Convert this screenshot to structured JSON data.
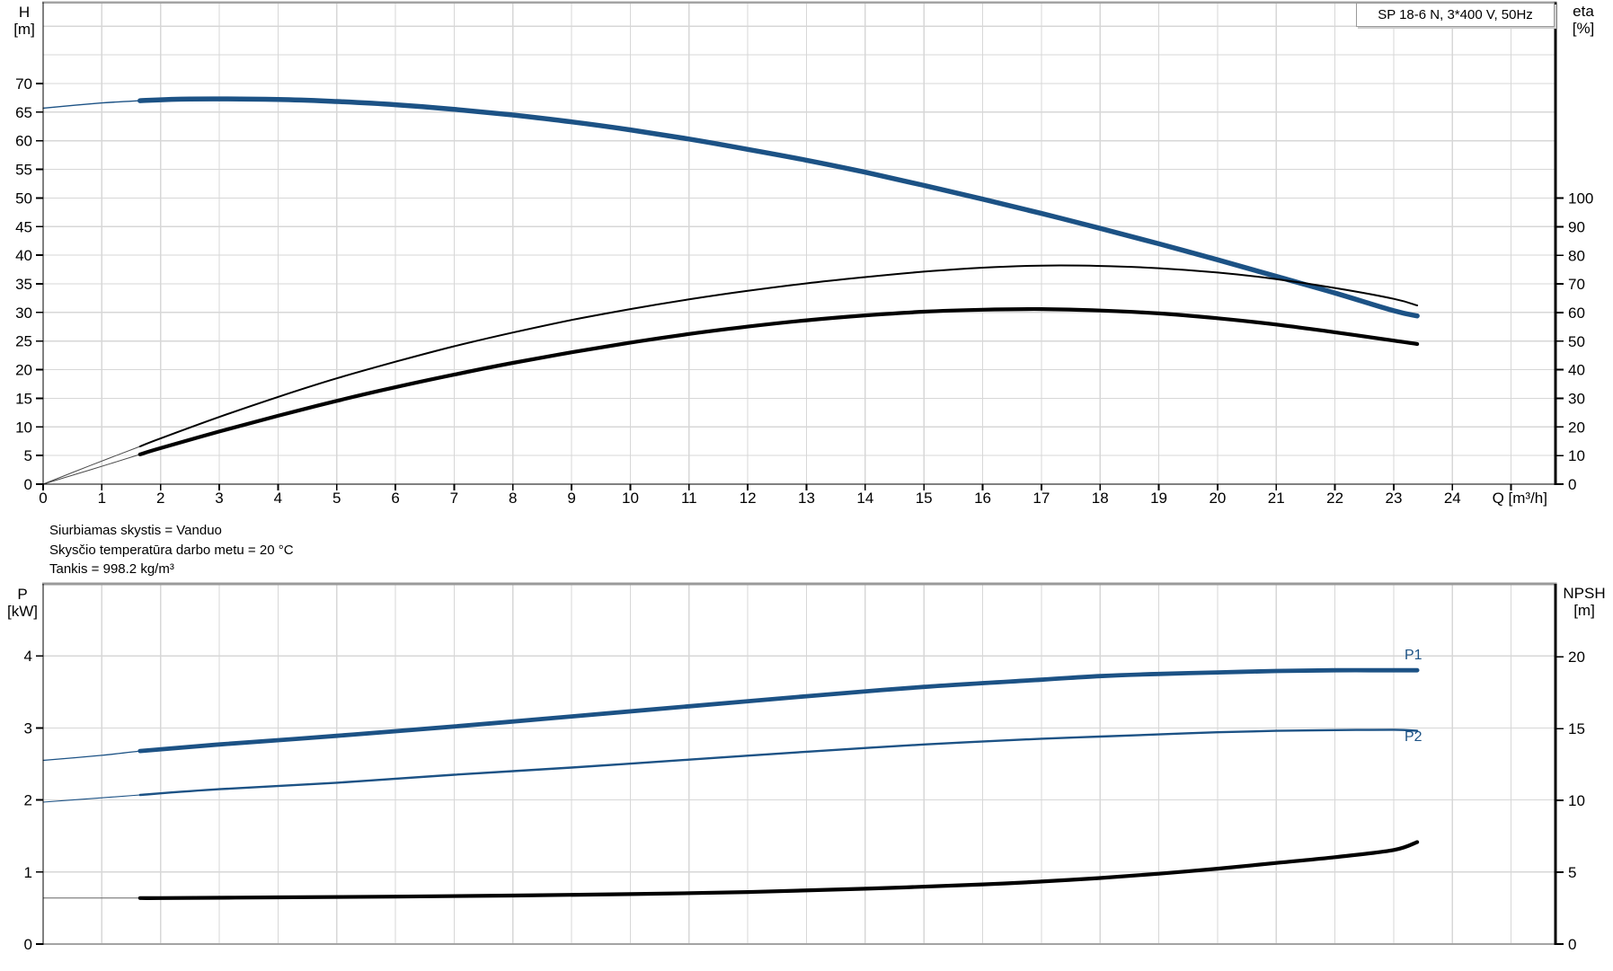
{
  "title_box": {
    "text": "SP 18-6 N, 3*400 V, 50Hz"
  },
  "notes": [
    "Siurbiamas skystis = Vanduo",
    "Skysčio temperatūra darbo metu = 20 °C",
    "Tankis = 998.2 kg/m³"
  ],
  "colors": {
    "curve_blue": "#1c5285",
    "curve_black": "#000000",
    "thin_lead": "#4a4a4a",
    "grid": "#d7d7d7",
    "border_gray": "#a3a3a3",
    "axis_black": "#000000",
    "label_blue": "#1c5285"
  },
  "chart_data": [
    {
      "id": "hq-eta",
      "type": "line",
      "title": "SP 18-6 N, 3*400 V, 50Hz",
      "x_axis": {
        "label": "Q [m³/h]",
        "ticks": [
          0,
          1,
          2,
          3,
          4,
          5,
          6,
          7,
          8,
          9,
          10,
          11,
          12,
          13,
          14,
          15,
          16,
          17,
          18,
          19,
          20,
          21,
          22,
          23,
          24
        ],
        "extra_tick_marks": [
          25
        ],
        "range": [
          0,
          25.74
        ],
        "grid_step": 1
      },
      "y_left": {
        "label": [
          "H",
          "[m]"
        ],
        "ticks": [
          0,
          5,
          10,
          15,
          20,
          25,
          30,
          35,
          40,
          45,
          50,
          55,
          60,
          65,
          70
        ],
        "range": [
          0,
          84.2
        ],
        "grid_step": 5
      },
      "y_right": {
        "label": [
          "eta",
          "[%]"
        ],
        "ticks": [
          0,
          10,
          20,
          30,
          40,
          50,
          60,
          70,
          80,
          90,
          100
        ],
        "range": [
          0,
          168.5
        ]
      },
      "series": [
        {
          "name": "head-curve",
          "label": "",
          "axis": "left",
          "color": "#1c5285",
          "width": 5.5,
          "thin_width": 1.4,
          "thin_color": "#1c5285",
          "thin_until": 1.65,
          "points": [
            [
              0,
              65.7
            ],
            [
              1,
              66.6
            ],
            [
              1.65,
              67.0
            ],
            [
              2.5,
              67.3
            ],
            [
              4,
              67.2
            ],
            [
              5,
              66.85
            ],
            [
              6,
              66.3
            ],
            [
              7,
              65.5
            ],
            [
              8,
              64.5
            ],
            [
              9,
              63.3
            ],
            [
              10,
              61.9
            ],
            [
              11,
              60.3
            ],
            [
              12,
              58.5
            ],
            [
              13,
              56.6
            ],
            [
              14,
              54.5
            ],
            [
              15,
              52.2
            ],
            [
              16,
              49.8
            ],
            [
              17,
              47.3
            ],
            [
              18,
              44.7
            ],
            [
              19,
              42.0
            ],
            [
              20,
              39.2
            ],
            [
              21,
              36.3
            ],
            [
              22,
              33.4
            ],
            [
              23,
              30.3
            ],
            [
              23.4,
              29.4
            ]
          ]
        },
        {
          "name": "eta-pump-curve",
          "label": "",
          "axis": "right",
          "color": "#000000",
          "width": 2,
          "thin_width": 1,
          "thin_color": "#4a4a4a",
          "thin_until": 1.65,
          "points": [
            [
              0,
              0
            ],
            [
              0.8,
              6.5
            ],
            [
              1.65,
              13.2
            ],
            [
              2,
              16
            ],
            [
              3,
              23.5
            ],
            [
              4,
              30.5
            ],
            [
              5,
              37
            ],
            [
              6,
              42.8
            ],
            [
              7,
              48.2
            ],
            [
              8,
              53
            ],
            [
              9,
              57.4
            ],
            [
              10,
              61.2
            ],
            [
              11,
              64.6
            ],
            [
              12,
              67.6
            ],
            [
              13,
              70.2
            ],
            [
              14,
              72.4
            ],
            [
              15,
              74.3
            ],
            [
              16,
              75.7
            ],
            [
              17,
              76.4
            ],
            [
              18,
              76.3
            ],
            [
              19,
              75.5
            ],
            [
              20,
              74.0
            ],
            [
              21,
              71.7
            ],
            [
              22,
              68.6
            ],
            [
              23,
              64.8
            ],
            [
              23.4,
              62.5
            ]
          ]
        },
        {
          "name": "eta-unit-curve",
          "label": "",
          "axis": "right",
          "color": "#000000",
          "width": 4.2,
          "thin_width": 1,
          "thin_color": "#4a4a4a",
          "thin_until": 1.65,
          "points": [
            [
              0,
              0
            ],
            [
              0.8,
              5.0
            ],
            [
              1.65,
              10.4
            ],
            [
              2,
              12.6
            ],
            [
              3,
              18.4
            ],
            [
              4,
              23.9
            ],
            [
              5,
              29.1
            ],
            [
              6,
              33.9
            ],
            [
              7,
              38.3
            ],
            [
              8,
              42.4
            ],
            [
              9,
              46.1
            ],
            [
              10,
              49.5
            ],
            [
              11,
              52.5
            ],
            [
              12,
              55.1
            ],
            [
              13,
              57.3
            ],
            [
              14,
              59.0
            ],
            [
              15,
              60.3
            ],
            [
              16,
              61.0
            ],
            [
              17,
              61.2
            ],
            [
              18,
              60.7
            ],
            [
              19,
              59.7
            ],
            [
              20,
              58.0
            ],
            [
              21,
              55.8
            ],
            [
              22,
              53.1
            ],
            [
              23,
              50.2
            ],
            [
              23.4,
              49.0
            ]
          ]
        }
      ]
    },
    {
      "id": "power-npsh",
      "type": "line",
      "title": "",
      "x_axis": {
        "label": "",
        "ticks": [],
        "extra_tick_marks": [],
        "range": [
          0,
          25.74
        ],
        "grid_step": 1
      },
      "y_left": {
        "label": [
          "P",
          "[kW]"
        ],
        "ticks": [
          0,
          1,
          2,
          3,
          4
        ],
        "range": [
          0,
          5.0
        ],
        "grid_step": 1
      },
      "y_right": {
        "label": [
          "NPSH",
          "[m]"
        ],
        "ticks": [
          0,
          5,
          10,
          15,
          20
        ],
        "range": [
          0,
          25.08
        ]
      },
      "series": [
        {
          "name": "p1-curve",
          "label": "P1",
          "axis": "left",
          "color": "#1c5285",
          "width": 4.8,
          "thin_width": 1.3,
          "thin_color": "#1c5285",
          "thin_until": 1.65,
          "points": [
            [
              0,
              2.55
            ],
            [
              1,
              2.62
            ],
            [
              1.65,
              2.68
            ],
            [
              3,
              2.77
            ],
            [
              5,
              2.89
            ],
            [
              7,
              3.02
            ],
            [
              9,
              3.16
            ],
            [
              11,
              3.3
            ],
            [
              13,
              3.44
            ],
            [
              15,
              3.57
            ],
            [
              17,
              3.67
            ],
            [
              18,
              3.72
            ],
            [
              19,
              3.75
            ],
            [
              20,
              3.77
            ],
            [
              21,
              3.79
            ],
            [
              22,
              3.8
            ],
            [
              23,
              3.8
            ],
            [
              23.4,
              3.8
            ]
          ]
        },
        {
          "name": "p2-curve",
          "label": "P2",
          "axis": "left",
          "color": "#1c5285",
          "width": 2.4,
          "thin_width": 1.1,
          "thin_color": "#1c5285",
          "thin_until": 1.65,
          "points": [
            [
              0,
              1.97
            ],
            [
              1,
              2.03
            ],
            [
              1.65,
              2.07
            ],
            [
              3,
              2.15
            ],
            [
              5,
              2.24
            ],
            [
              7,
              2.35
            ],
            [
              9,
              2.45
            ],
            [
              11,
              2.56
            ],
            [
              13,
              2.67
            ],
            [
              15,
              2.77
            ],
            [
              17,
              2.85
            ],
            [
              18,
              2.88
            ],
            [
              19,
              2.91
            ],
            [
              20,
              2.94
            ],
            [
              21,
              2.96
            ],
            [
              22,
              2.97
            ],
            [
              23,
              2.975
            ],
            [
              23.4,
              2.96
            ]
          ]
        },
        {
          "name": "npsh-curve",
          "label": "",
          "axis": "right",
          "color": "#000000",
          "width": 4.2,
          "thin_width": 1,
          "thin_color": "#666666",
          "thin_until": 1.65,
          "points": [
            [
              0,
              3.2
            ],
            [
              1.65,
              3.2
            ],
            [
              2,
              3.2
            ],
            [
              4,
              3.25
            ],
            [
              6,
              3.3
            ],
            [
              8,
              3.38
            ],
            [
              10,
              3.48
            ],
            [
              12,
              3.62
            ],
            [
              14,
              3.85
            ],
            [
              16,
              4.15
            ],
            [
              17,
              4.35
            ],
            [
              18,
              4.6
            ],
            [
              19,
              4.9
            ],
            [
              20,
              5.25
            ],
            [
              21,
              5.65
            ],
            [
              22,
              6.05
            ],
            [
              23,
              6.55
            ],
            [
              23.4,
              7.1
            ]
          ]
        }
      ]
    }
  ]
}
